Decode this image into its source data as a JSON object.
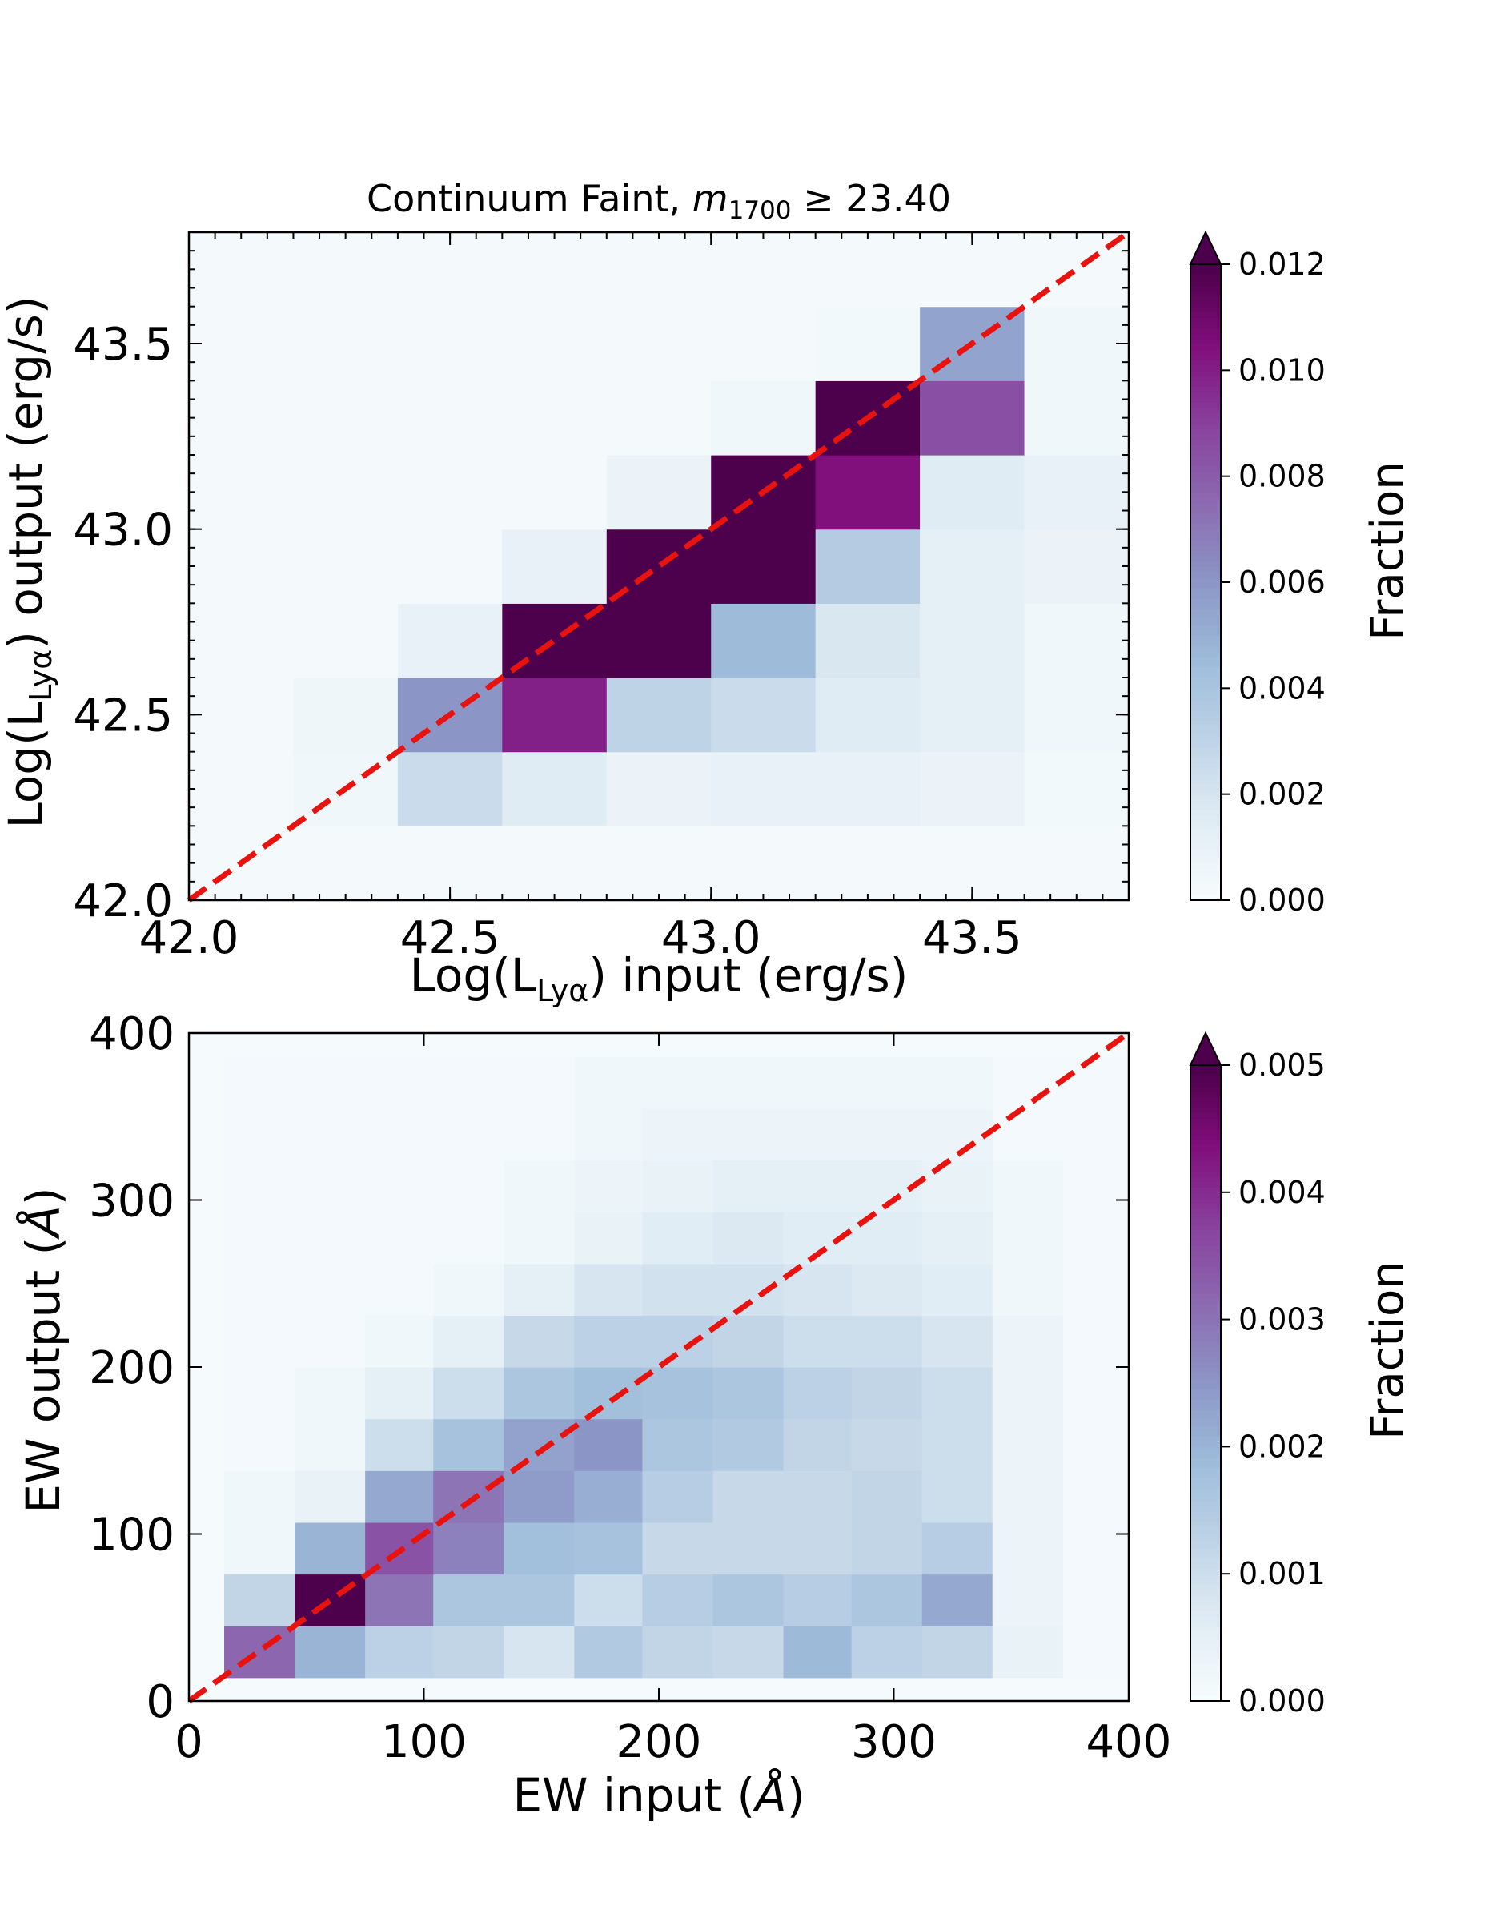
{
  "chart_data": [
    {
      "type": "heatmap",
      "title": "Continuum Faint, m1700 ≥ 23.40",
      "title_parts": {
        "prefix": "Continuum Faint, ",
        "m": "m",
        "sub": "1700",
        "rel": " ≥ ",
        "value": "23.40"
      },
      "xlabel": {
        "pre": "Log(L",
        "sub": "Lyα",
        "post": ") input (erg/s)"
      },
      "ylabel": {
        "pre": "Log(L",
        "sub": "Lyα",
        "post": ") output (erg/s)"
      },
      "xlim": [
        42.0,
        43.8
      ],
      "ylim": [
        42.0,
        43.8
      ],
      "xticks": [
        "42.0",
        "42.5",
        "43.0",
        "43.5"
      ],
      "yticks": [
        "42.0",
        "42.5",
        "43.0",
        "43.5"
      ],
      "x_edges": [
        42.0,
        42.2,
        42.4,
        42.6,
        42.8,
        43.0,
        43.2,
        43.4,
        43.6,
        43.8
      ],
      "y_edges": [
        42.0,
        42.2,
        42.4,
        42.6,
        42.8,
        43.0,
        43.2,
        43.4,
        43.6,
        43.8
      ],
      "values": [
        [
          0.0002,
          0.0002,
          0.0002,
          0.0002,
          0.0002,
          0.0002,
          0.0002,
          0.0002,
          0.0002
        ],
        [
          0.0002,
          0.0005,
          0.0025,
          0.0015,
          0.0008,
          0.001,
          0.001,
          0.0008,
          0.0003
        ],
        [
          0.0002,
          0.0006,
          0.006,
          0.01,
          0.003,
          0.0025,
          0.0015,
          0.0012,
          0.0005
        ],
        [
          0.0002,
          0.0002,
          0.001,
          0.013,
          0.013,
          0.0045,
          0.0018,
          0.0012,
          0.0005
        ],
        [
          0.0002,
          0.0002,
          0.0002,
          0.001,
          0.013,
          0.013,
          0.0035,
          0.0012,
          0.0008
        ],
        [
          0.0002,
          0.0002,
          0.0002,
          0.0002,
          0.0008,
          0.013,
          0.0105,
          0.0015,
          0.001
        ],
        [
          0.0002,
          0.0002,
          0.0002,
          0.0002,
          0.0002,
          0.0005,
          0.013,
          0.0085,
          0.0005
        ],
        [
          0.0002,
          0.0002,
          0.0002,
          0.0002,
          0.0002,
          0.0002,
          0.0003,
          0.0055,
          0.0005
        ],
        [
          0.0002,
          0.0002,
          0.0002,
          0.0002,
          0.0002,
          0.0002,
          0.0002,
          0.0002,
          0.0002
        ]
      ],
      "vmin": 0.0,
      "vmax": 0.012,
      "colorbar_label": "Fraction",
      "colorbar_ticks": [
        "0.000",
        "0.002",
        "0.004",
        "0.006",
        "0.008",
        "0.010",
        "0.012"
      ],
      "colorbar_extend": "max",
      "reference_line": {
        "style": "dashed",
        "color": "#e8130f",
        "from": [
          42.0,
          42.0
        ],
        "to": [
          43.8,
          43.8
        ]
      }
    },
    {
      "type": "heatmap",
      "xlabel": {
        "pre": "EW input (",
        "unit": "Å",
        "post": ")"
      },
      "ylabel": {
        "pre": "EW output (",
        "unit": "Å",
        "post": ")"
      },
      "xlim": [
        0,
        400
      ],
      "ylim": [
        0,
        400
      ],
      "xticks": [
        "0",
        "100",
        "200",
        "300",
        "400"
      ],
      "yticks": [
        "0",
        "100",
        "200",
        "300",
        "400"
      ],
      "x_edges": [
        0,
        15,
        45,
        75,
        104,
        134,
        164,
        193,
        223,
        253,
        282,
        312,
        342,
        372,
        400
      ],
      "y_edges": [
        0,
        14,
        45,
        76,
        107,
        138,
        169,
        200,
        231,
        262,
        293,
        324,
        355,
        386,
        400
      ],
      "values": [
        [
          5e-05,
          5e-05,
          5e-05,
          5e-05,
          5e-05,
          5e-05,
          5e-05,
          5e-05,
          5e-05,
          5e-05,
          5e-05,
          5e-05,
          5e-05,
          5e-05
        ],
        [
          5e-05,
          0.0032,
          0.002,
          0.0013,
          0.0012,
          0.0008,
          0.0015,
          0.0012,
          0.0011,
          0.0019,
          0.0013,
          0.0012,
          0.0004,
          0.0001
        ],
        [
          5e-05,
          0.0012,
          0.0052,
          0.003,
          0.0016,
          0.0016,
          0.001,
          0.0014,
          0.0016,
          0.0014,
          0.0016,
          0.0022,
          0.0003,
          0.0001
        ],
        [
          5e-05,
          0.0002,
          0.002,
          0.0035,
          0.0028,
          0.0018,
          0.0017,
          0.0011,
          0.0011,
          0.0011,
          0.0012,
          0.0014,
          0.0003,
          0.0001
        ],
        [
          5e-05,
          0.0002,
          0.0004,
          0.0022,
          0.003,
          0.0024,
          0.0021,
          0.0014,
          0.0011,
          0.0011,
          0.0012,
          0.001,
          0.0003,
          0.0001
        ],
        [
          5e-05,
          0.0001,
          0.0002,
          0.001,
          0.0017,
          0.0023,
          0.0025,
          0.0016,
          0.0015,
          0.0012,
          0.0011,
          0.001,
          0.0003,
          0.0001
        ],
        [
          5e-05,
          0.0001,
          0.0002,
          0.0005,
          0.001,
          0.0016,
          0.0018,
          0.0017,
          0.0016,
          0.0013,
          0.0012,
          0.001,
          0.0003,
          0.0001
        ],
        [
          5e-05,
          0.0001,
          0.0001,
          0.0002,
          0.0005,
          0.0011,
          0.0013,
          0.0013,
          0.0012,
          0.001,
          0.001,
          0.0008,
          0.0003,
          0.0001
        ],
        [
          5e-05,
          0.0001,
          0.0001,
          0.0001,
          0.0002,
          0.0005,
          0.0008,
          0.0009,
          0.0009,
          0.0008,
          0.0007,
          0.0006,
          0.0002,
          0.0001
        ],
        [
          5e-05,
          0.0001,
          0.0001,
          0.0001,
          0.0001,
          0.0002,
          0.0004,
          0.0006,
          0.0007,
          0.0006,
          0.0006,
          0.0005,
          0.0002,
          0.0001
        ],
        [
          5e-05,
          0.0001,
          0.0001,
          0.0001,
          0.0001,
          0.0002,
          0.0003,
          0.0004,
          0.0005,
          0.0005,
          0.0005,
          0.0004,
          0.0002,
          0.0001
        ],
        [
          5e-05,
          0.0001,
          0.0001,
          0.0001,
          0.0001,
          0.0001,
          0.0002,
          0.0003,
          0.0003,
          0.0003,
          0.0003,
          0.0003,
          0.0001,
          0.0001
        ],
        [
          5e-05,
          0.0001,
          0.0001,
          0.0001,
          0.0001,
          0.0001,
          0.0002,
          0.0002,
          0.0002,
          0.0002,
          0.0002,
          0.0002,
          0.0001,
          0.0001
        ],
        [
          5e-05,
          5e-05,
          5e-05,
          5e-05,
          5e-05,
          5e-05,
          5e-05,
          5e-05,
          5e-05,
          5e-05,
          5e-05,
          5e-05,
          5e-05,
          5e-05
        ]
      ],
      "vmin": 0.0,
      "vmax": 0.005,
      "colorbar_label": "Fraction",
      "colorbar_ticks": [
        "0.000",
        "0.001",
        "0.002",
        "0.003",
        "0.004",
        "0.005"
      ],
      "colorbar_extend": "max",
      "reference_line": {
        "style": "dashed",
        "color": "#e8130f",
        "from": [
          0,
          0
        ],
        "to": [
          400,
          400
        ]
      }
    }
  ]
}
